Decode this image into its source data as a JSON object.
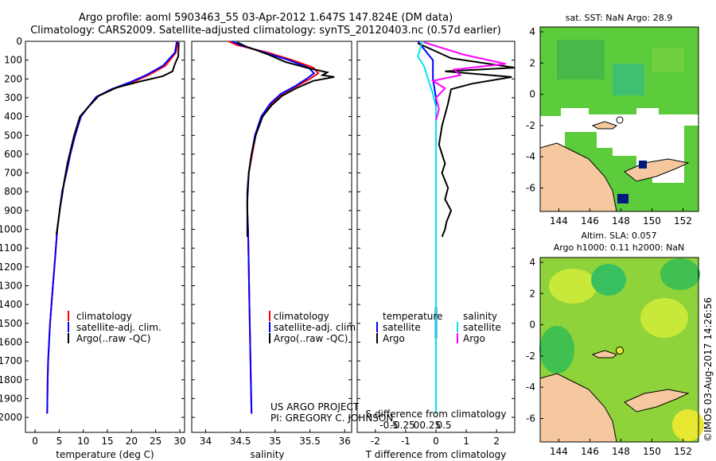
{
  "header": {
    "line1": "Argo profile: aoml 5903463_55 03-Apr-2012 1.647S 147.824E (DM data)",
    "line2": "Climatology: CARS2009. Satellite-adjusted climatology: synTS_20120403.nc (0.57d earlier)"
  },
  "depth_ticks": [
    "0",
    "100",
    "200",
    "300",
    "400",
    "500",
    "600",
    "700",
    "800",
    "900",
    "1000",
    "1100",
    "1200",
    "1300",
    "1400",
    "1500",
    "1600",
    "1700",
    "1800",
    "1900",
    "2000"
  ],
  "colors": {
    "climatology": "#ff0000",
    "satellite": "#0000ff",
    "argo": "#000000",
    "diff_sal_sat": "#00e5ee",
    "diff_sal_argo": "#ff00ff",
    "land": "#f5c8a0",
    "ocean_green": "#2eb82e"
  },
  "legend": {
    "climatology": "climatology",
    "satellite_adj": "satellite-adj. clim.",
    "argo": "Argo(..raw -QC)",
    "temperature_head": "temperature",
    "salinity_head": "salinity",
    "satellite": "satellite",
    "argo_short": "Argo"
  },
  "credits": {
    "project": "US ARGO PROJECT",
    "pi": "PI: GREGORY C. JOHNSON"
  },
  "timestamp": "©IMOS 03-Aug-2017 14:26:56",
  "chart_data": [
    {
      "type": "line",
      "title": "",
      "xlabel": "temperature (deg C)",
      "ylabel": "depth",
      "xlim": [
        -2,
        31
      ],
      "ylim": [
        2080,
        0
      ],
      "xticks": [
        "0",
        "5",
        "10",
        "15",
        "20",
        "25",
        "30"
      ],
      "series": [
        {
          "name": "climatology",
          "x": [
            29.6,
            29.2,
            27,
            23.5,
            20,
            16,
            12.8,
            11,
            9.5,
            8.3,
            7.3,
            6.5,
            5.6,
            5.1,
            4.6,
            4.3,
            4.0,
            3.7,
            3.4,
            3.1,
            2.9,
            2.7,
            2.6,
            2.5
          ],
          "y": [
            0,
            60,
            130,
            180,
            220,
            255,
            295,
            350,
            400,
            500,
            600,
            700,
            800,
            900,
            1000,
            1100,
            1200,
            1300,
            1400,
            1500,
            1600,
            1700,
            1800,
            1980
          ]
        },
        {
          "name": "satellite-adj. clim.",
          "x": [
            29.4,
            29.0,
            26.5,
            23,
            19.5,
            15.8,
            12.7,
            11,
            9.5,
            8.3,
            7.3,
            6.5,
            5.6,
            5.1,
            4.6,
            4.3,
            4.0,
            3.7,
            3.4,
            3.1,
            2.9,
            2.7,
            2.6,
            2.5
          ],
          "y": [
            0,
            60,
            130,
            180,
            220,
            255,
            295,
            350,
            400,
            500,
            600,
            700,
            800,
            900,
            1000,
            1100,
            1200,
            1300,
            1400,
            1500,
            1600,
            1700,
            1800,
            1980
          ]
        },
        {
          "name": "Argo(..raw -QC)",
          "x": [
            29.8,
            29.7,
            29.0,
            28.5,
            26.5,
            21.5,
            17.0,
            13.2,
            11.0,
            9.3,
            8.1,
            6.7,
            6.0,
            5.6,
            5.2,
            4.9,
            4.6,
            4.4
          ],
          "y": [
            5,
            80,
            120,
            160,
            185,
            215,
            245,
            290,
            350,
            400,
            500,
            650,
            750,
            820,
            880,
            940,
            1000,
            1030
          ]
        }
      ]
    },
    {
      "type": "line",
      "title": "",
      "xlabel": "salinity",
      "ylabel": "depth",
      "xlim": [
        33.8,
        36.1
      ],
      "ylim": [
        2080,
        0
      ],
      "xticks": [
        "34",
        "34.5",
        "35",
        "35.5",
        "36"
      ],
      "series": [
        {
          "name": "climatology",
          "x": [
            34.33,
            34.45,
            34.9,
            35.25,
            35.55,
            35.62,
            35.5,
            35.3,
            35.1,
            34.95,
            34.82,
            34.72,
            34.67,
            34.62,
            34.6,
            34.6,
            34.61,
            34.62,
            34.63,
            34.64,
            34.65,
            34.66
          ],
          "y": [
            0,
            20,
            60,
            100,
            140,
            170,
            200,
            240,
            280,
            330,
            400,
            500,
            600,
            700,
            800,
            900,
            1000,
            1200,
            1400,
            1600,
            1800,
            1980
          ]
        },
        {
          "name": "satellite-adj. clim.",
          "x": [
            34.38,
            34.5,
            34.85,
            35.2,
            35.48,
            35.56,
            35.45,
            35.28,
            35.08,
            34.93,
            34.8,
            34.71,
            34.66,
            34.62,
            34.6,
            34.6,
            34.61,
            34.62,
            34.63,
            34.64,
            34.65,
            34.66
          ],
          "y": [
            0,
            20,
            60,
            100,
            140,
            170,
            200,
            240,
            280,
            330,
            400,
            500,
            600,
            700,
            800,
            900,
            1000,
            1200,
            1400,
            1600,
            1800,
            1980
          ]
        },
        {
          "name": "Argo(..raw -QC)",
          "x": [
            34.45,
            34.6,
            34.9,
            35.15,
            35.45,
            35.75,
            35.68,
            35.85,
            35.55,
            35.3,
            35.1,
            34.95,
            34.82,
            34.72,
            34.66,
            34.62,
            34.6,
            34.6
          ],
          "y": [
            5,
            30,
            70,
            110,
            140,
            165,
            180,
            190,
            210,
            250,
            290,
            340,
            400,
            500,
            600,
            700,
            850,
            1040
          ]
        }
      ]
    },
    {
      "type": "line",
      "title": "",
      "xlabel": "T difference from climatology",
      "xlabel2": "S difference from climatology",
      "ylabel": "depth",
      "xlim": [
        -2.6,
        2.6
      ],
      "ylim": [
        2080,
        0
      ],
      "xticks": [
        "-2",
        "-1",
        "0",
        "1",
        "2"
      ],
      "xticks_top": [
        "-0.5",
        "-0.25",
        "0",
        "0.25",
        "0.5"
      ],
      "series": [
        {
          "name": "temperature satellite",
          "x": [
            -0.6,
            -0.3,
            -0.1,
            -0.1,
            0,
            0,
            0,
            0,
            0,
            0,
            0,
            0
          ],
          "y": [
            0,
            60,
            100,
            200,
            300,
            400,
            600,
            800,
            1000,
            1400,
            1800,
            1980
          ]
        },
        {
          "name": "temperature Argo",
          "x": [
            -0.6,
            0.5,
            2.6,
            0.3,
            2.5,
            1.2,
            0.5,
            0.4,
            0.2,
            0.1,
            0.3,
            0.2,
            0.4,
            0.3,
            0.5,
            0.35,
            0.3,
            0.2
          ],
          "y": [
            10,
            90,
            140,
            160,
            190,
            225,
            255,
            330,
            450,
            550,
            650,
            700,
            780,
            840,
            900,
            960,
            1000,
            1040
          ]
        },
        {
          "name": "salinity satellite",
          "x": [
            -0.45,
            -0.6,
            -0.4,
            -0.3,
            -0.2,
            -0.1,
            0,
            0,
            0,
            0,
            0,
            0
          ],
          "y": [
            0,
            80,
            130,
            180,
            230,
            280,
            350,
            500,
            800,
            1200,
            1600,
            1980
          ]
        },
        {
          "name": "salinity Argo",
          "x": [
            -0.4,
            0.9,
            2.3,
            0.6,
            0.8,
            -0.1,
            0.3,
            0,
            0.1,
            0
          ],
          "y": [
            5,
            70,
            120,
            150,
            180,
            210,
            250,
            300,
            360,
            420
          ]
        }
      ]
    }
  ],
  "maps": {
    "top": {
      "title": "sat. SST: NaN Argo: 28.9",
      "yticks": [
        "4",
        "2",
        "0",
        "-2",
        "-4",
        "-6"
      ],
      "xticks": [
        "144",
        "146",
        "148",
        "150",
        "152"
      ]
    },
    "bottom": {
      "title1": "Altim. SLA: 0.057",
      "title2": "Argo h1000: 0.11 h2000: NaN",
      "yticks": [
        "4",
        "2",
        "0",
        "-2",
        "-4",
        "-6"
      ],
      "xticks": [
        "144",
        "146",
        "148",
        "150",
        "152"
      ]
    }
  }
}
